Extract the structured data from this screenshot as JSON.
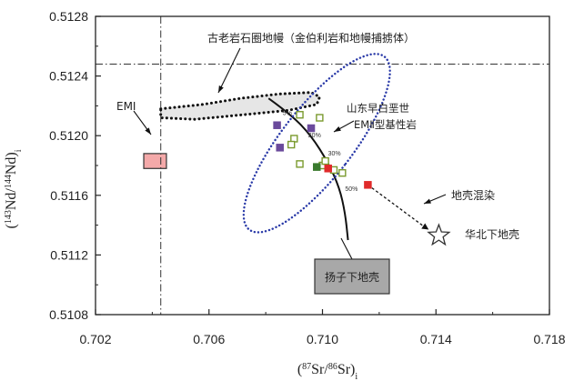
{
  "chart_data": {
    "type": "scatter",
    "xlabel_parts": [
      "(",
      "87",
      "Sr/",
      "86",
      "Sr)",
      "i"
    ],
    "ylabel_parts": [
      "(",
      "143",
      "Nd/",
      "144",
      "Nd)",
      "i"
    ],
    "xlim": [
      0.702,
      0.718
    ],
    "ylim": [
      0.5108,
      0.5128
    ],
    "x_ticks": [
      "0.702",
      "0.706",
      "0.710",
      "0.714",
      "0.718"
    ],
    "y_ticks": [
      "0.5108",
      "0.5112",
      "0.5116",
      "0.5120",
      "0.5124",
      "0.5128"
    ],
    "x_tick_values": [
      0.702,
      0.706,
      0.71,
      0.714,
      0.718
    ],
    "y_tick_values": [
      0.5108,
      0.5112,
      0.5116,
      0.512,
      0.5124,
      0.5128
    ],
    "reference_lines": {
      "vertical_x": 0.7043,
      "horizontal_y": 0.51248
    },
    "series": [
      {
        "marker": "filled-square",
        "color": "#6a4a9c",
        "points": [
          [
            0.7084,
            0.51207
          ],
          [
            0.7096,
            0.51205
          ],
          [
            0.7085,
            0.51192
          ]
        ]
      },
      {
        "marker": "hollow-square",
        "color": "#7a9a2e",
        "points": [
          [
            0.7092,
            0.51214
          ],
          [
            0.7099,
            0.51212
          ],
          [
            0.709,
            0.51198
          ],
          [
            0.7089,
            0.51194
          ],
          [
            0.7092,
            0.51181
          ],
          [
            0.71,
            0.5118
          ],
          [
            0.7101,
            0.51183
          ],
          [
            0.7104,
            0.51177
          ],
          [
            0.7107,
            0.51175
          ]
        ]
      },
      {
        "marker": "filled-square",
        "color": "#3a7a2e",
        "points": [
          [
            0.7098,
            0.51179
          ]
        ]
      },
      {
        "marker": "filled-square",
        "color": "#e02a2a",
        "points": [
          [
            0.7102,
            0.51178
          ],
          [
            0.7116,
            0.51167
          ]
        ]
      }
    ],
    "emi_box": {
      "x": [
        0.7037,
        0.7045
      ],
      "y": [
        0.51178,
        0.51188
      ]
    },
    "yangtze_curve": [
      [
        0.7081,
        0.51225
      ],
      [
        0.7089,
        0.51214
      ],
      [
        0.7096,
        0.512
      ],
      [
        0.7102,
        0.51182
      ],
      [
        0.7106,
        0.51165
      ],
      [
        0.7108,
        0.51148
      ],
      [
        0.7109,
        0.5113
      ]
    ],
    "mixing_arrow": {
      "from": [
        0.7116,
        0.51167
      ],
      "to": [
        0.714,
        0.51134
      ]
    },
    "north_china_star": [
      0.7141,
      0.51133
    ],
    "old_mantle_field": [
      [
        0.7043,
        0.51218
      ],
      [
        0.7058,
        0.51221
      ],
      [
        0.7071,
        0.51225
      ],
      [
        0.7085,
        0.51228
      ],
      [
        0.7096,
        0.51229
      ],
      [
        0.7099,
        0.51226
      ],
      [
        0.7098,
        0.51221
      ],
      [
        0.7088,
        0.51217
      ],
      [
        0.7072,
        0.51214
      ],
      [
        0.7055,
        0.51211
      ],
      [
        0.7043,
        0.51212
      ]
    ],
    "eii_ellipse": {
      "cx": 0.7098,
      "cy": 0.51195,
      "rx": 0.00125,
      "ry": 0.00023,
      "rotate": 38
    },
    "percent_labels": [
      {
        "text": "5%",
        "x": 0.7085,
        "y": 0.51215
      },
      {
        "text": "20%",
        "x": 0.7094,
        "y": 0.512
      },
      {
        "text": "30%",
        "x": 0.7101,
        "y": 0.51188
      },
      {
        "text": "50%",
        "x": 0.7107,
        "y": 0.51164
      }
    ],
    "annotations": {
      "old_mantle": "古老岩石圈地幔（金伯利岩和地幔捕掳体）",
      "emi": "EMI",
      "shandong_line1": "山东早白垩世",
      "shandong_line2": "EMⅡ型基性岩",
      "crust_mixing": "地壳混染",
      "north_china": "华北下地壳",
      "yangtze": "扬子下地壳"
    }
  }
}
